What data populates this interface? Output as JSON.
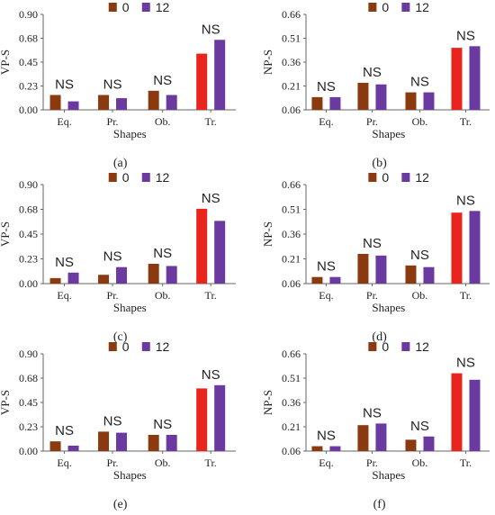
{
  "colors": {
    "series0": "#e8241c",
    "series0_dark": "#8b3a0f",
    "series12": "#6a3aa0",
    "axis": "#666666"
  },
  "chart_data": [
    {
      "panel": "(a)",
      "type": "bar",
      "categories": [
        "Eq.",
        "Pr.",
        "Ob.",
        "Tr."
      ],
      "xlabel": "Shapes",
      "ylabel": "VP-S",
      "ylim": [
        0,
        0.9
      ],
      "yticks": [
        "0.00",
        "0.23",
        "0.45",
        "0.68",
        "0.90"
      ],
      "legend": {
        "placement": "top-center",
        "labels": [
          "0",
          "12"
        ]
      },
      "annotations": [
        "NS",
        "NS",
        "NS",
        "NS"
      ],
      "series": [
        {
          "name": "0",
          "values": [
            0.14,
            0.14,
            0.18,
            0.53
          ]
        },
        {
          "name": "12",
          "values": [
            0.08,
            0.11,
            0.14,
            0.66
          ]
        }
      ]
    },
    {
      "panel": "(b)",
      "type": "bar",
      "categories": [
        "Eq.",
        "Pr.",
        "Ob.",
        "Tr."
      ],
      "xlabel": "Shapes",
      "ylabel": "NP-S",
      "ylim": [
        0.06,
        0.66
      ],
      "yticks": [
        "0.06",
        "0.21",
        "0.36",
        "0.51",
        "0.66"
      ],
      "legend": {
        "placement": "top-center",
        "labels": [
          "0",
          "12"
        ]
      },
      "annotations": [
        "NS",
        "NS",
        "NS",
        "NS"
      ],
      "series": [
        {
          "name": "0",
          "values": [
            0.14,
            0.23,
            0.17,
            0.45
          ]
        },
        {
          "name": "12",
          "values": [
            0.14,
            0.22,
            0.17,
            0.46
          ]
        }
      ]
    },
    {
      "panel": "(c)",
      "type": "bar",
      "categories": [
        "Eq.",
        "Pr.",
        "Ob.",
        "Tr."
      ],
      "xlabel": "Shapes",
      "ylabel": "VP-S",
      "ylim": [
        0,
        0.9
      ],
      "yticks": [
        "0.00",
        "0.23",
        "0.45",
        "0.68",
        "0.90"
      ],
      "legend": {
        "placement": "top-center",
        "labels": [
          "0",
          "12"
        ]
      },
      "annotations": [
        "NS",
        "NS",
        "NS",
        "NS"
      ],
      "series": [
        {
          "name": "0",
          "values": [
            0.05,
            0.08,
            0.18,
            0.68
          ]
        },
        {
          "name": "12",
          "values": [
            0.1,
            0.15,
            0.16,
            0.57
          ]
        }
      ]
    },
    {
      "panel": "(d)",
      "type": "bar",
      "categories": [
        "Eq.",
        "Pr.",
        "Ob.",
        "Tr."
      ],
      "xlabel": "Shapes",
      "ylabel": "NP-S",
      "ylim": [
        0.06,
        0.66
      ],
      "yticks": [
        "0.06",
        "0.21",
        "0.36",
        "0.51",
        "0.66"
      ],
      "legend": {
        "placement": "top-center",
        "labels": [
          "0",
          "12"
        ]
      },
      "annotations": [
        "NS",
        "NS",
        "NS",
        "NS"
      ],
      "series": [
        {
          "name": "0",
          "values": [
            0.1,
            0.24,
            0.17,
            0.49
          ]
        },
        {
          "name": "12",
          "values": [
            0.1,
            0.23,
            0.16,
            0.5
          ]
        }
      ]
    },
    {
      "panel": "(e)",
      "type": "bar",
      "categories": [
        "Eq.",
        "Pr.",
        "Ob.",
        "Tr."
      ],
      "xlabel": "Shapes",
      "ylabel": "VP-S",
      "ylim": [
        0,
        0.9
      ],
      "yticks": [
        "0.00",
        "0.23",
        "0.45",
        "0.68",
        "0.90"
      ],
      "legend": {
        "placement": "top-center",
        "labels": [
          "0",
          "12"
        ]
      },
      "annotations": [
        "NS",
        "NS",
        "NS",
        "NS"
      ],
      "series": [
        {
          "name": "0",
          "values": [
            0.09,
            0.18,
            0.15,
            0.58
          ]
        },
        {
          "name": "12",
          "values": [
            0.05,
            0.17,
            0.15,
            0.61
          ]
        }
      ]
    },
    {
      "panel": "(f)",
      "type": "bar",
      "categories": [
        "Eq.",
        "Pr.",
        "Ob.",
        "Tr."
      ],
      "xlabel": "Shapes",
      "ylabel": "NP-S",
      "ylim": [
        0.06,
        0.66
      ],
      "yticks": [
        "0.06",
        "0.21",
        "0.36",
        "0.51",
        "0.66"
      ],
      "legend": {
        "placement": "top-center",
        "labels": [
          "0",
          "12"
        ]
      },
      "annotations": [
        "NS",
        "NS",
        "NS",
        "NS"
      ],
      "series": [
        {
          "name": "0",
          "values": [
            0.09,
            0.22,
            0.13,
            0.54
          ]
        },
        {
          "name": "12",
          "values": [
            0.09,
            0.23,
            0.15,
            0.5
          ]
        }
      ]
    }
  ]
}
